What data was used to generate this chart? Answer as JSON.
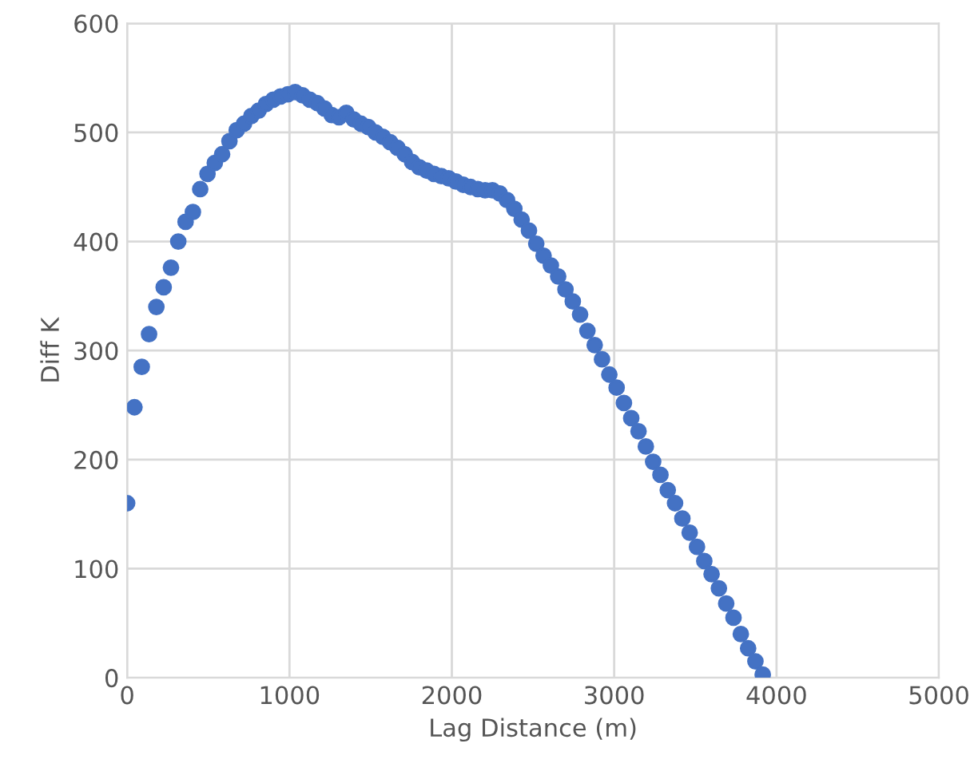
{
  "chart_data": {
    "type": "scatter",
    "xlabel": "Lag Distance (m)",
    "ylabel": "Diff K",
    "xlim": [
      0,
      5000
    ],
    "xticks": [
      0,
      1000,
      2000,
      3000,
      4000,
      5000
    ],
    "ylim": [
      0,
      600
    ],
    "yticks": [
      0,
      100,
      200,
      300,
      400,
      500,
      600
    ],
    "grid": true,
    "marker": "circle",
    "legend": false,
    "series": [
      {
        "color": "#4472c4",
        "x": [
          0,
          45,
          90,
          135,
          180,
          225,
          270,
          315,
          360,
          405,
          450,
          495,
          540,
          585,
          630,
          675,
          720,
          765,
          810,
          855,
          900,
          945,
          990,
          1035,
          1080,
          1125,
          1170,
          1215,
          1260,
          1305,
          1350,
          1395,
          1440,
          1485,
          1530,
          1575,
          1620,
          1665,
          1710,
          1755,
          1800,
          1845,
          1890,
          1935,
          1980,
          2025,
          2070,
          2115,
          2160,
          2205,
          2250,
          2295,
          2340,
          2385,
          2430,
          2475,
          2520,
          2565,
          2610,
          2655,
          2700,
          2745,
          2790,
          2835,
          2880,
          2925,
          2970,
          3015,
          3060,
          3105,
          3150,
          3195,
          3240,
          3285,
          3330,
          3375,
          3420,
          3465,
          3510,
          3555,
          3600,
          3645,
          3690,
          3735,
          3780,
          3825,
          3870,
          3915
        ],
        "values": [
          160,
          248,
          285,
          315,
          340,
          358,
          376,
          400,
          418,
          427,
          448,
          462,
          472,
          480,
          492,
          502,
          508,
          515,
          520,
          526,
          530,
          533,
          535,
          537,
          534,
          530,
          527,
          522,
          516,
          514,
          518,
          512,
          508,
          505,
          500,
          496,
          491,
          486,
          480,
          473,
          468,
          465,
          462,
          460,
          458,
          455,
          452,
          450,
          448,
          447,
          447,
          444,
          438,
          430,
          420,
          410,
          398,
          387,
          378,
          368,
          356,
          345,
          333,
          318,
          305,
          292,
          278,
          266,
          252,
          238,
          226,
          212,
          198,
          186,
          172,
          160,
          146,
          133,
          120,
          107,
          95,
          82,
          68,
          55,
          40,
          27,
          15,
          3
        ]
      }
    ]
  }
}
